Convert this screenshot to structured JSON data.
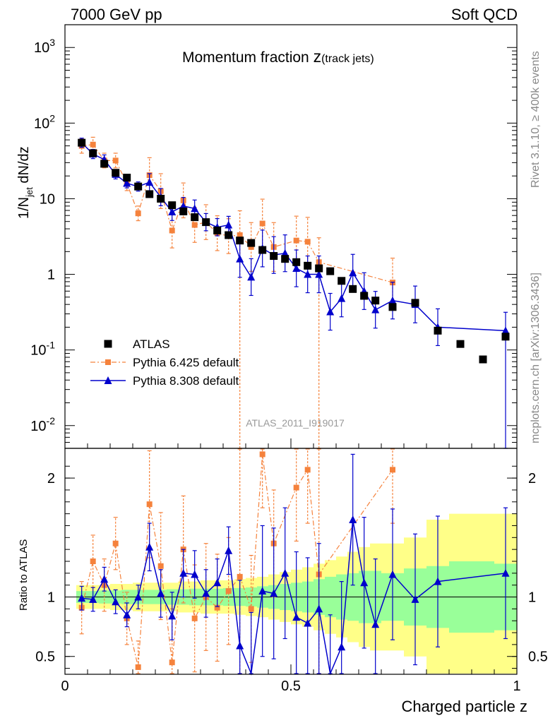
{
  "header": {
    "left": "7000 GeV pp",
    "right": "Soft QCD"
  },
  "title": {
    "main": "Momentum fraction ",
    "z": "z",
    "sub": "(track jets)"
  },
  "side_labels": {
    "rivet": "Rivet 3.1.10, ≥ 400k events",
    "site": "mcplots.cern.ch [arXiv:1306.3436]"
  },
  "watermark": "ATLAS_2011_I919017",
  "axes": {
    "ylabel_main": {
      "a": "1/N",
      "sub": "jet",
      "b": " dN/dz"
    },
    "ylabel_ratio": "Ratio to ATLAS",
    "xlabel": "Charged particle z"
  },
  "colors": {
    "atlas": "#000000",
    "pythia6": "#f5823c",
    "pythia8": "#0000cc",
    "band_inner": "#99ff99",
    "band_outer": "#ffff88"
  },
  "chart_data": {
    "type": "scatter",
    "x_range": [
      0,
      1
    ],
    "main_panel": {
      "y_scale": "log",
      "y_range": [
        0.005,
        2000
      ],
      "y_ticks": [
        "10^-2",
        "10^-1",
        "1",
        "10",
        "10^2",
        "10^3"
      ]
    },
    "ratio_panel": {
      "y_range": [
        0.35,
        2.25
      ],
      "y_ticks": [
        "0.5",
        "1",
        "2"
      ]
    },
    "legend": {
      "position": "lower-left",
      "entries": [
        {
          "label": "ATLAS",
          "marker": "square"
        },
        {
          "label": "Pythia 6.425 default",
          "marker": "square-dashdot"
        },
        {
          "label": "Pythia 8.308 default",
          "marker": "triangle-line"
        }
      ]
    },
    "series": [
      {
        "name": "ATLAS",
        "x": [
          0.037,
          0.062,
          0.087,
          0.112,
          0.137,
          0.162,
          0.187,
          0.212,
          0.237,
          0.262,
          0.287,
          0.312,
          0.337,
          0.362,
          0.387,
          0.412,
          0.437,
          0.462,
          0.487,
          0.512,
          0.537,
          0.562,
          0.587,
          0.612,
          0.637,
          0.662,
          0.687,
          0.725,
          0.775,
          0.825,
          0.875,
          0.925,
          0.975
        ],
        "y": [
          55,
          40,
          29,
          22,
          19,
          14.5,
          11.5,
          10,
          8.2,
          6.8,
          5.7,
          4.9,
          3.8,
          3.3,
          2.8,
          2.6,
          2.1,
          1.75,
          1.6,
          1.45,
          1.3,
          1.2,
          1.1,
          0.82,
          0.64,
          0.52,
          0.45,
          0.37,
          0.42,
          0.18,
          0.12,
          0.075,
          0.15
        ]
      },
      {
        "name": "Pythia 6.425 default",
        "x": [
          0.037,
          0.062,
          0.087,
          0.112,
          0.137,
          0.162,
          0.187,
          0.212,
          0.237,
          0.262,
          0.287,
          0.312,
          0.337,
          0.362,
          0.387,
          0.412,
          0.437,
          0.462,
          0.512,
          0.537,
          0.562,
          0.725
        ],
        "y": [
          50,
          52,
          32,
          32,
          16,
          6.4,
          20.5,
          12.6,
          3.8,
          9.5,
          4.5,
          4.9,
          3.5,
          3.2,
          3.3,
          2.3,
          4.7,
          2.3,
          2.8,
          2.7,
          1.45,
          0.78
        ]
      },
      {
        "name": "Pythia 8.308 default",
        "x": [
          0.037,
          0.062,
          0.087,
          0.112,
          0.137,
          0.162,
          0.187,
          0.212,
          0.237,
          0.262,
          0.287,
          0.312,
          0.337,
          0.362,
          0.387,
          0.412,
          0.437,
          0.462,
          0.487,
          0.512,
          0.537,
          0.562,
          0.587,
          0.612,
          0.637,
          0.662,
          0.687,
          0.725,
          0.775,
          0.825,
          0.975
        ],
        "y": [
          55,
          39,
          33,
          21,
          16,
          14.5,
          16.5,
          10.5,
          6.7,
          8,
          7.4,
          4.9,
          4.2,
          4.5,
          1.6,
          0.92,
          2.2,
          1.8,
          1.9,
          1.2,
          1,
          1,
          0.32,
          0.48,
          1.05,
          0.6,
          0.34,
          0.45,
          0.4,
          0.2,
          0.18
        ]
      }
    ],
    "ratio_series": [
      {
        "name": "Pythia 6.425 default",
        "x": [
          0.037,
          0.062,
          0.087,
          0.112,
          0.137,
          0.162,
          0.187,
          0.212,
          0.237,
          0.262,
          0.287,
          0.312,
          0.337,
          0.362,
          0.387,
          0.412,
          0.437,
          0.462,
          0.512,
          0.537,
          0.562,
          0.725
        ],
        "y": [
          0.91,
          1.3,
          1.1,
          1.45,
          0.82,
          0.41,
          1.78,
          1.26,
          0.45,
          1.4,
          0.82,
          1,
          0.91,
          1.05,
          1.17,
          0.9,
          2.2,
          1.45,
          1.92,
          2.07,
          1.19,
          2.07
        ]
      },
      {
        "name": "Pythia 8.308 default",
        "x": [
          0.037,
          0.062,
          0.087,
          0.112,
          0.137,
          0.162,
          0.187,
          0.212,
          0.237,
          0.262,
          0.287,
          0.312,
          0.337,
          0.362,
          0.387,
          0.412,
          0.437,
          0.462,
          0.487,
          0.512,
          0.537,
          0.562,
          0.587,
          0.612,
          0.637,
          0.662,
          0.687,
          0.725,
          0.775,
          0.825,
          0.975
        ],
        "y": [
          0.99,
          0.98,
          1.15,
          0.96,
          0.85,
          1,
          1.42,
          1.03,
          0.84,
          1.2,
          1.19,
          1.03,
          1.12,
          1.39,
          0.59,
          0.32,
          1.05,
          1.03,
          1.2,
          0.83,
          0.78,
          0.9,
          0.3,
          0.58,
          1.65,
          1.12,
          0.77,
          1.19,
          0.98,
          1.13,
          1.2
        ]
      }
    ]
  }
}
